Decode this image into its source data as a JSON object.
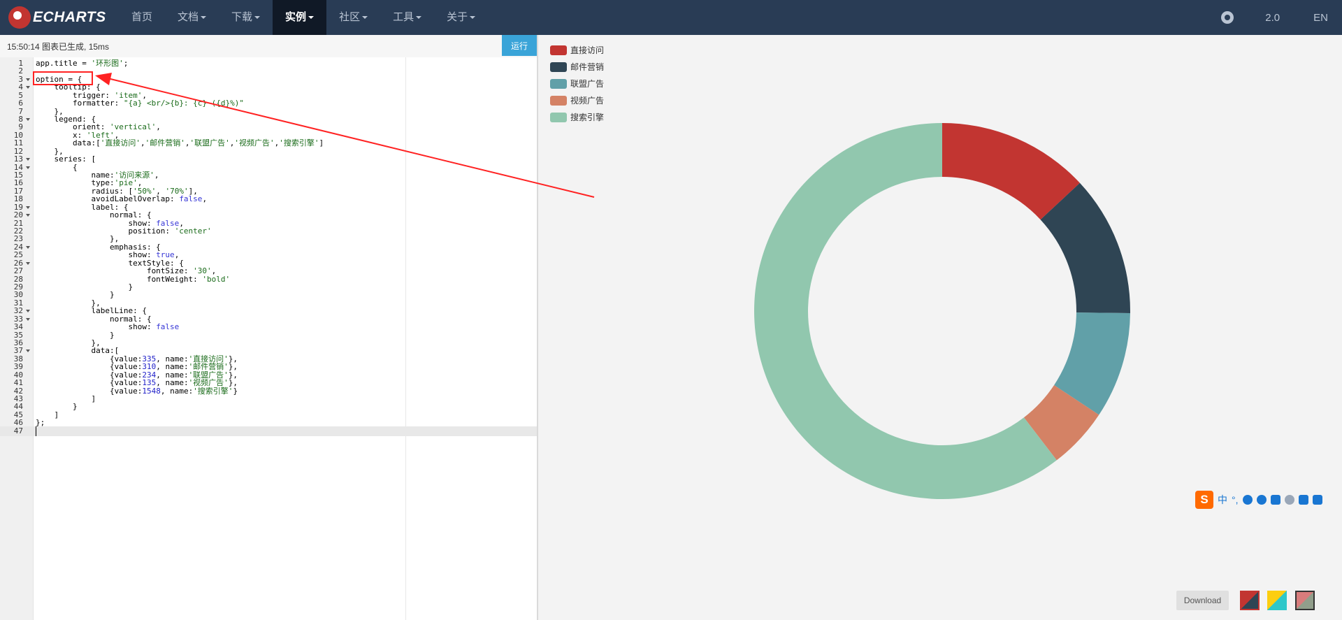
{
  "navbar": {
    "logo_text": "ECHARTS",
    "items": [
      {
        "label": "首页",
        "dropdown": false
      },
      {
        "label": "文档",
        "dropdown": true
      },
      {
        "label": "下载",
        "dropdown": true
      },
      {
        "label": "实例",
        "dropdown": true,
        "active": true
      },
      {
        "label": "社区",
        "dropdown": true
      },
      {
        "label": "工具",
        "dropdown": true
      },
      {
        "label": "关于",
        "dropdown": true
      }
    ],
    "version": "2.0",
    "lang": "EN",
    "github_icon": "github-icon"
  },
  "status": {
    "text": "15:50:14  图表已生成, 15ms",
    "run_label": "运行"
  },
  "colors": {
    "navbar": "#293c55",
    "active_nav": "#101926",
    "run": "#3aa4d8",
    "annotation": "#ff2222"
  },
  "code_lines": [
    "app.title = '环形图';",
    "",
    "option = {",
    "    tooltip: {",
    "        trigger: 'item',",
    "        formatter: \"{a} <br/>{b}: {c} ({d}%)\"",
    "    },",
    "    legend: {",
    "        orient: 'vertical',",
    "        x: 'left',",
    "        data:['直接访问','邮件营销','联盟广告','视频广告','搜索引擎']",
    "    },",
    "    series: [",
    "        {",
    "            name:'访问来源',",
    "            type:'pie',",
    "            radius: ['50%', '70%'],",
    "            avoidLabelOverlap: false,",
    "            label: {",
    "                normal: {",
    "                    show: false,",
    "                    position: 'center'",
    "                },",
    "                emphasis: {",
    "                    show: true,",
    "                    textStyle: {",
    "                        fontSize: '30',",
    "                        fontWeight: 'bold'",
    "                    }",
    "                }",
    "            },",
    "            labelLine: {",
    "                normal: {",
    "                    show: false",
    "                }",
    "            },",
    "            data:[",
    "                {value:335, name:'直接访问'},",
    "                {value:310, name:'邮件营销'},",
    "                {value:234, name:'联盟广告'},",
    "                {value:135, name:'视频广告'},",
    "                {value:1548, name:'搜索引擎'}",
    "            ]",
    "        }",
    "    ]",
    "};",
    ""
  ],
  "fold_lines": [
    3,
    4,
    8,
    13,
    14,
    19,
    20,
    24,
    26,
    32,
    33,
    37
  ],
  "current_line": 47,
  "chart_data": {
    "type": "pie",
    "title": "",
    "radius": [
      "50%",
      "70%"
    ],
    "legend_position": "top-left",
    "series_name": "访问来源",
    "slices": [
      {
        "name": "直接访问",
        "value": 335,
        "color": "#c23531"
      },
      {
        "name": "邮件营销",
        "value": 310,
        "color": "#2f4554"
      },
      {
        "name": "联盟广告",
        "value": 234,
        "color": "#61a0a8"
      },
      {
        "name": "视频广告",
        "value": 135,
        "color": "#d48265"
      },
      {
        "name": "搜索引擎",
        "value": 1548,
        "color": "#91c7ae"
      }
    ]
  },
  "ime": {
    "logo": "S",
    "glyphs": [
      "中",
      "°,"
    ],
    "icons": [
      "smile-icon",
      "mic-icon",
      "keyboard-icon",
      "user-icon",
      "shirt-icon",
      "grid-icon"
    ]
  },
  "download_label": "Download",
  "themes": [
    "theme-default",
    "theme-macarons",
    "theme-infographic"
  ]
}
